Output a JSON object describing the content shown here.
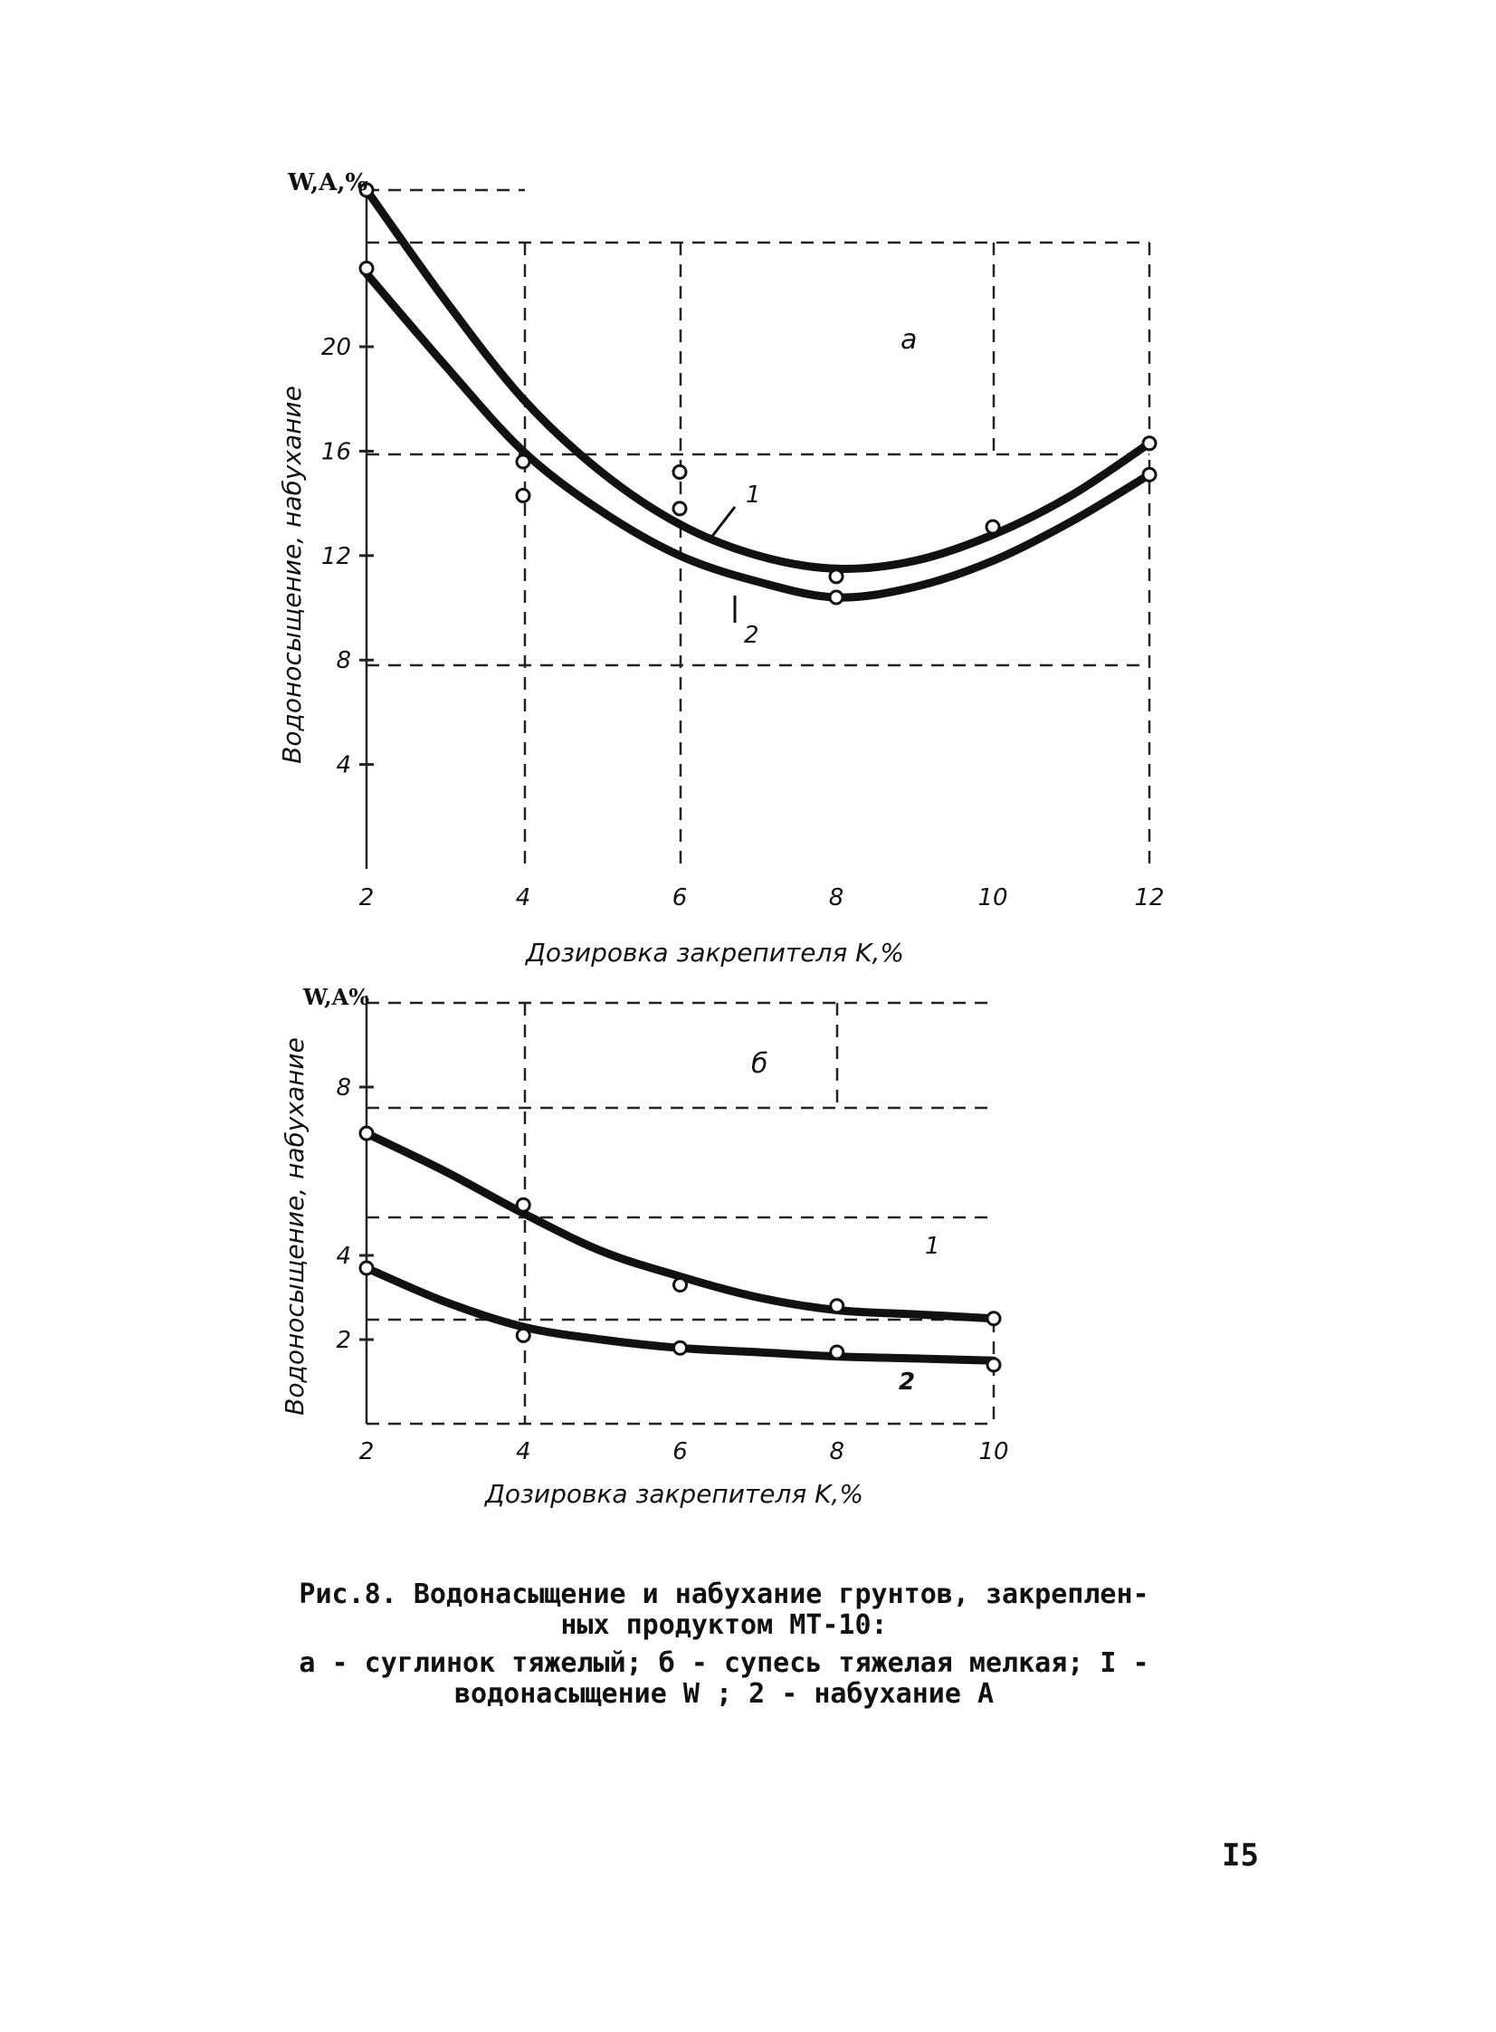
{
  "chart_data": [
    {
      "type": "line",
      "panel_label": "а",
      "title": "",
      "ylabel": "Водоносыщение, набухание",
      "y_unit_label": "W,A,%",
      "xlabel": "Дозировка закрепителя K,%",
      "xlim": [
        2,
        12
      ],
      "ylim": [
        0,
        26
      ],
      "x_ticks": [
        "2",
        "4",
        "6",
        "8",
        "10",
        "12"
      ],
      "y_ticks": [
        "4",
        "8",
        "12",
        "16",
        "20"
      ],
      "grid": true,
      "series": [
        {
          "name": "1",
          "curve_x": [
            2,
            3,
            4,
            5,
            6,
            7,
            8,
            9,
            10,
            11,
            12
          ],
          "curve_y": [
            26.0,
            21.8,
            18.0,
            15.2,
            13.2,
            12.0,
            11.5,
            11.8,
            12.8,
            14.3,
            16.3
          ],
          "points_x": [
            2,
            6,
            8,
            10,
            12
          ],
          "points_y": [
            26.0,
            15.2,
            11.2,
            13.1,
            16.3
          ]
        },
        {
          "name": "2",
          "curve_x": [
            2,
            3,
            4,
            5,
            6,
            7,
            8,
            9,
            10,
            11,
            12
          ],
          "curve_y": [
            22.8,
            19.3,
            16.0,
            13.7,
            12.0,
            11.0,
            10.4,
            10.8,
            11.8,
            13.3,
            15.1
          ],
          "points_x": [
            2,
            4,
            4,
            6,
            8,
            12
          ],
          "points_y": [
            23.0,
            15.6,
            14.3,
            13.8,
            10.4,
            15.1
          ]
        }
      ]
    },
    {
      "type": "line",
      "panel_label": "б",
      "title": "",
      "ylabel": "Водоносыщение, набухание",
      "y_unit_label": "W,A%",
      "xlabel": "Дозировка закрепителя K,%",
      "xlim": [
        2,
        10
      ],
      "ylim": [
        0,
        10
      ],
      "x_ticks": [
        "2",
        "4",
        "6",
        "8",
        "10"
      ],
      "y_ticks": [
        "2",
        "4",
        "8"
      ],
      "grid": true,
      "series": [
        {
          "name": "1",
          "curve_x": [
            2,
            3,
            4,
            5,
            6,
            7,
            8,
            9,
            10
          ],
          "curve_y": [
            6.9,
            6.0,
            5.0,
            4.1,
            3.5,
            3.0,
            2.7,
            2.6,
            2.5
          ],
          "points_x": [
            2,
            4,
            6,
            8,
            10
          ],
          "points_y": [
            6.9,
            5.2,
            3.3,
            2.8,
            2.5
          ]
        },
        {
          "name": "2",
          "curve_x": [
            2,
            3,
            4,
            5,
            6,
            7,
            8,
            9,
            10
          ],
          "curve_y": [
            3.7,
            2.9,
            2.3,
            2.0,
            1.8,
            1.7,
            1.6,
            1.55,
            1.5
          ],
          "points_x": [
            2,
            4,
            6,
            8,
            10
          ],
          "points_y": [
            3.7,
            2.1,
            1.8,
            1.7,
            1.4
          ]
        }
      ]
    }
  ],
  "caption": {
    "line1": "Рис.8. Водонасыщение и набухание грунтов, закреплен-",
    "line2": "ных продуктом МТ-10:",
    "line3": "а - суглинок тяжелый; б - супесь тяжелая мелкая; I -",
    "line4": "водонасыщение W ; 2 - набухание A"
  },
  "page_number": "I5"
}
